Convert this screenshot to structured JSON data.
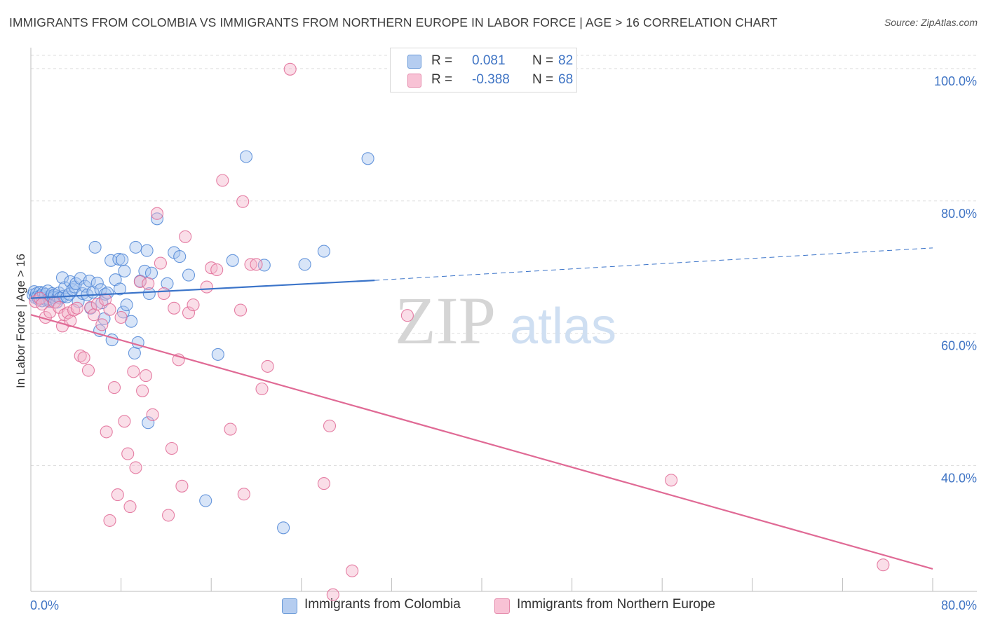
{
  "title": "IMMIGRANTS FROM COLOMBIA VS IMMIGRANTS FROM NORTHERN EUROPE IN LABOR FORCE | AGE > 16 CORRELATION CHART",
  "source": "Source: ZipAtlas.com",
  "watermark": {
    "zip": "ZIP",
    "atlas": "atlas"
  },
  "legend": {
    "r_label": "R =",
    "n_label": "N =",
    "series": [
      {
        "r": "0.081",
        "n": "82"
      },
      {
        "r": "-0.388",
        "n": "68"
      }
    ]
  },
  "chart_data": {
    "type": "scatter",
    "title": "IMMIGRANTS FROM COLOMBIA VS IMMIGRANTS FROM NORTHERN EUROPE IN LABOR FORCE | AGE > 16 CORRELATION CHART",
    "xlabel": "",
    "ylabel": "In Labor Force | Age > 16",
    "xlim": [
      0,
      80
    ],
    "ylim": [
      21,
      102
    ],
    "x_tick_labels": [
      "0.0%",
      "80.0%"
    ],
    "y_ticks": [
      {
        "value": 40,
        "label": "40.0%"
      },
      {
        "value": 60,
        "label": "60.0%"
      },
      {
        "value": 80,
        "label": "80.0%"
      },
      {
        "value": 100,
        "label": "100.0%"
      }
    ],
    "legend_position": "top-center",
    "series": [
      {
        "name": "Immigrants from Colombia",
        "color": "#4f86d6",
        "fill": "#a9c6ef",
        "r": 0.081,
        "n": 82,
        "trend": {
          "x0": 0,
          "y0": 65.3,
          "x1": 30.5,
          "y1": 68.0,
          "x_dash_end": 80,
          "y_dash_end": 72.9
        },
        "points": [
          [
            0.2,
            65.8
          ],
          [
            0.3,
            66.3
          ],
          [
            0.4,
            65.4
          ],
          [
            0.5,
            66.0
          ],
          [
            0.6,
            65.5
          ],
          [
            0.7,
            65.1
          ],
          [
            0.8,
            66.2
          ],
          [
            0.9,
            65.7
          ],
          [
            1.0,
            64.9
          ],
          [
            1.1,
            66.1
          ],
          [
            1.2,
            65.3
          ],
          [
            1.3,
            65.9
          ],
          [
            1.4,
            65.0
          ],
          [
            1.5,
            66.4
          ],
          [
            1.6,
            65.2
          ],
          [
            1.7,
            64.8
          ],
          [
            1.8,
            65.6
          ],
          [
            1.9,
            66.0
          ],
          [
            2.0,
            65.4
          ],
          [
            2.1,
            65.8
          ],
          [
            2.3,
            64.7
          ],
          [
            2.4,
            65.5
          ],
          [
            2.5,
            66.1
          ],
          [
            2.6,
            65.3
          ],
          [
            2.8,
            68.4
          ],
          [
            2.9,
            65.6
          ],
          [
            3.0,
            66.9
          ],
          [
            3.2,
            65.5
          ],
          [
            3.4,
            65.9
          ],
          [
            3.5,
            67.8
          ],
          [
            3.7,
            66.6
          ],
          [
            3.9,
            67.0
          ],
          [
            4.0,
            67.5
          ],
          [
            4.2,
            64.8
          ],
          [
            4.4,
            68.3
          ],
          [
            4.6,
            66.0
          ],
          [
            4.8,
            67.1
          ],
          [
            5.0,
            65.8
          ],
          [
            5.2,
            67.9
          ],
          [
            5.3,
            63.8
          ],
          [
            5.5,
            66.2
          ],
          [
            5.7,
            73.0
          ],
          [
            5.9,
            67.6
          ],
          [
            6.1,
            60.4
          ],
          [
            6.2,
            66.6
          ],
          [
            6.3,
            64.6
          ],
          [
            6.5,
            62.2
          ],
          [
            6.6,
            65.9
          ],
          [
            6.8,
            66.1
          ],
          [
            7.1,
            71.0
          ],
          [
            7.2,
            59.0
          ],
          [
            7.5,
            68.1
          ],
          [
            7.8,
            71.2
          ],
          [
            7.9,
            66.7
          ],
          [
            8.1,
            71.1
          ],
          [
            8.2,
            63.2
          ],
          [
            8.3,
            69.4
          ],
          [
            8.5,
            64.3
          ],
          [
            8.9,
            61.8
          ],
          [
            9.2,
            57.0
          ],
          [
            9.3,
            73.0
          ],
          [
            9.5,
            58.6
          ],
          [
            9.7,
            67.9
          ],
          [
            10.1,
            69.4
          ],
          [
            10.3,
            72.5
          ],
          [
            10.4,
            46.5
          ],
          [
            10.5,
            66.0
          ],
          [
            10.7,
            69.1
          ],
          [
            11.2,
            77.3
          ],
          [
            12.1,
            67.5
          ],
          [
            12.7,
            72.2
          ],
          [
            13.2,
            71.6
          ],
          [
            14.0,
            68.8
          ],
          [
            15.5,
            34.7
          ],
          [
            16.6,
            56.8
          ],
          [
            17.9,
            71.0
          ],
          [
            19.1,
            86.7
          ],
          [
            20.7,
            70.3
          ],
          [
            22.4,
            30.6
          ],
          [
            24.3,
            70.4
          ],
          [
            26.0,
            72.4
          ],
          [
            29.9,
            86.4
          ]
        ]
      },
      {
        "name": "Immigrants from Northern Europe",
        "color": "#e06a95",
        "fill": "#f5b6cc",
        "r": -0.388,
        "n": 68,
        "trend": {
          "x0": 0,
          "y0": 62.8,
          "x1": 80,
          "y1": 24.4
        },
        "points": [
          [
            0.4,
            64.8
          ],
          [
            0.8,
            65.3
          ],
          [
            1.0,
            64.4
          ],
          [
            1.3,
            62.4
          ],
          [
            1.7,
            63.2
          ],
          [
            2.1,
            64.7
          ],
          [
            2.5,
            63.9
          ],
          [
            2.8,
            61.1
          ],
          [
            3.0,
            62.8
          ],
          [
            3.3,
            63.1
          ],
          [
            3.5,
            61.9
          ],
          [
            3.8,
            63.5
          ],
          [
            4.1,
            63.8
          ],
          [
            4.4,
            56.6
          ],
          [
            4.7,
            56.3
          ],
          [
            5.1,
            54.4
          ],
          [
            5.3,
            63.9
          ],
          [
            5.6,
            62.8
          ],
          [
            5.9,
            64.4
          ],
          [
            6.3,
            61.3
          ],
          [
            6.6,
            65.1
          ],
          [
            6.7,
            45.1
          ],
          [
            7.0,
            63.6
          ],
          [
            7.4,
            51.8
          ],
          [
            7.7,
            35.6
          ],
          [
            8.0,
            62.4
          ],
          [
            8.3,
            46.7
          ],
          [
            8.6,
            41.8
          ],
          [
            8.8,
            33.8
          ],
          [
            9.1,
            54.2
          ],
          [
            9.3,
            39.7
          ],
          [
            9.7,
            67.8
          ],
          [
            9.9,
            51.3
          ],
          [
            10.2,
            53.6
          ],
          [
            10.4,
            67.5
          ],
          [
            10.8,
            47.7
          ],
          [
            11.2,
            78.1
          ],
          [
            11.5,
            70.6
          ],
          [
            11.8,
            66.0
          ],
          [
            12.2,
            32.5
          ],
          [
            12.5,
            42.6
          ],
          [
            12.7,
            63.8
          ],
          [
            13.1,
            56.0
          ],
          [
            13.4,
            36.9
          ],
          [
            13.7,
            74.6
          ],
          [
            14.0,
            63.1
          ],
          [
            14.4,
            64.3
          ],
          [
            15.6,
            67.0
          ],
          [
            16.0,
            69.9
          ],
          [
            16.5,
            69.6
          ],
          [
            17.0,
            83.1
          ],
          [
            17.7,
            45.5
          ],
          [
            18.6,
            63.5
          ],
          [
            18.8,
            79.9
          ],
          [
            18.9,
            35.7
          ],
          [
            19.5,
            70.4
          ],
          [
            20.0,
            70.4
          ],
          [
            20.5,
            51.6
          ],
          [
            21.0,
            55.0
          ],
          [
            23.0,
            99.9
          ],
          [
            26.0,
            37.3
          ],
          [
            26.5,
            46.0
          ],
          [
            26.8,
            20.5
          ],
          [
            28.5,
            24.1
          ],
          [
            33.4,
            62.7
          ],
          [
            56.8,
            37.8
          ],
          [
            75.6,
            25.0
          ],
          [
            7.0,
            31.7
          ]
        ]
      }
    ]
  },
  "bottom_legend": [
    {
      "label": "Immigrants from Colombia"
    },
    {
      "label": "Immigrants from Northern Europe"
    }
  ]
}
